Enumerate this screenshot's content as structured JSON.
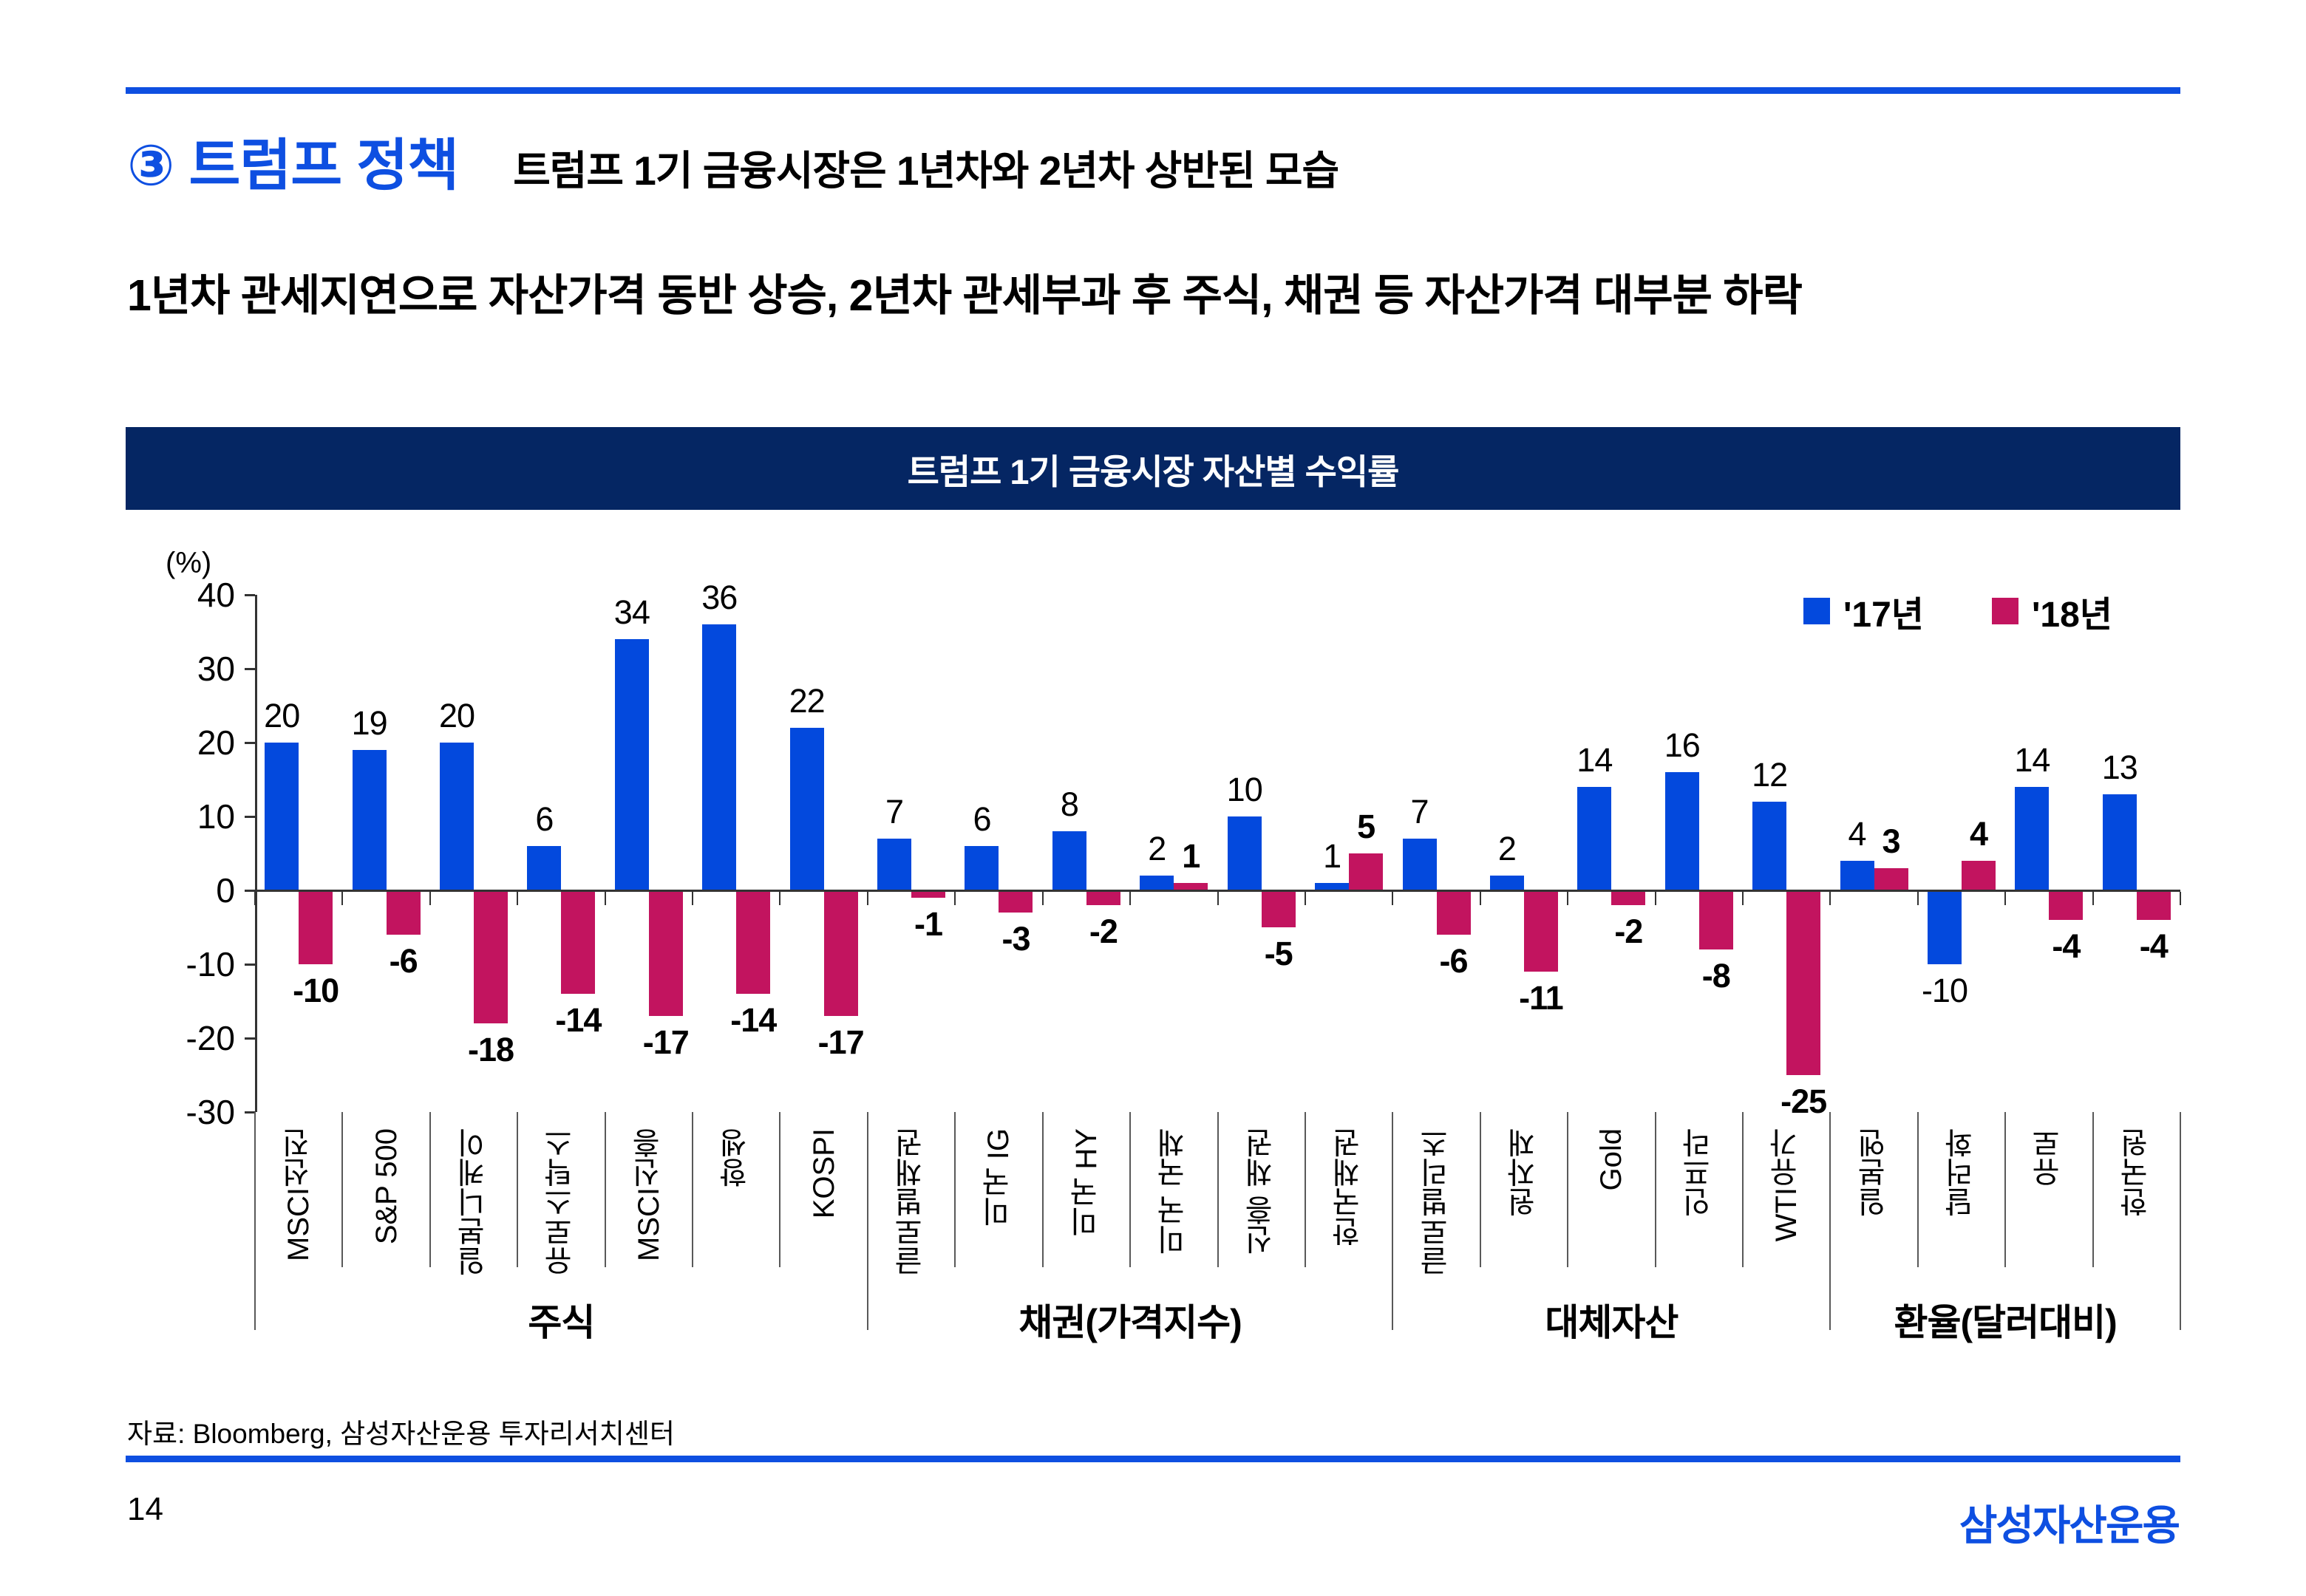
{
  "header": {
    "section_title": "③ 트럼프 정책",
    "subtitle": "트럼프 1기 금융시장은 1년차와 2년차 상반된 모습",
    "headline": "1년차 관세지연으로 자산가격 동반 상승, 2년차 관세부과 후 주식, 채권 등 자산가격 대부분 하락"
  },
  "chart_data": {
    "type": "bar",
    "title": "트럼프 1기 금융시장 자산별 수익률",
    "y_unit": "(%)",
    "ylim": [
      -30,
      40
    ],
    "y_ticks": [
      40,
      30,
      20,
      10,
      0,
      -10,
      -20,
      -30
    ],
    "grid": false,
    "legend_position": "top-right",
    "categories": [
      "MSCI선진",
      "S&P 500",
      "일본니케이",
      "유로스탁스",
      "MSCI신흥",
      "항셍",
      "KOSPI",
      "글로벌채권",
      "미국 IG",
      "미국 HY",
      "미국 국채",
      "신흥 채권",
      "한국채권",
      "글로벌리츠",
      "원자재",
      "Gold",
      "인프라",
      "WTI유가",
      "일본엔",
      "달러화",
      "유로",
      "한국원"
    ],
    "series": [
      {
        "name": "'17년",
        "color": "#0349DD",
        "values": [
          20,
          19,
          20,
          6,
          34,
          36,
          22,
          7,
          6,
          8,
          2,
          10,
          1,
          7,
          2,
          14,
          16,
          12,
          4,
          -10,
          14,
          13
        ]
      },
      {
        "name": "'18년",
        "color": "#C2145F",
        "values": [
          -10,
          -6,
          -18,
          -14,
          -17,
          -14,
          -17,
          -1,
          -3,
          -2,
          1,
          -5,
          5,
          -6,
          -11,
          -2,
          -8,
          -25,
          3,
          4,
          -4,
          -4
        ]
      }
    ],
    "groups": [
      {
        "label": "주식",
        "count": 7
      },
      {
        "label": "채권(가격지수)",
        "count": 6
      },
      {
        "label": "대체자산",
        "count": 5
      },
      {
        "label": "환율(달러대비)",
        "count": 4
      }
    ]
  },
  "footer": {
    "source": "자료: Bloomberg, 삼성자산운용 투자리서치센터",
    "page_number": "14",
    "logo": "삼성자산운용"
  },
  "colors": {
    "accent_blue": "#0E4FE1",
    "bar_blue": "#0349DD",
    "bar_pink": "#C2145F",
    "navy_band": "#052663",
    "axis_line": "#333333",
    "separator_gray": "#595959"
  }
}
